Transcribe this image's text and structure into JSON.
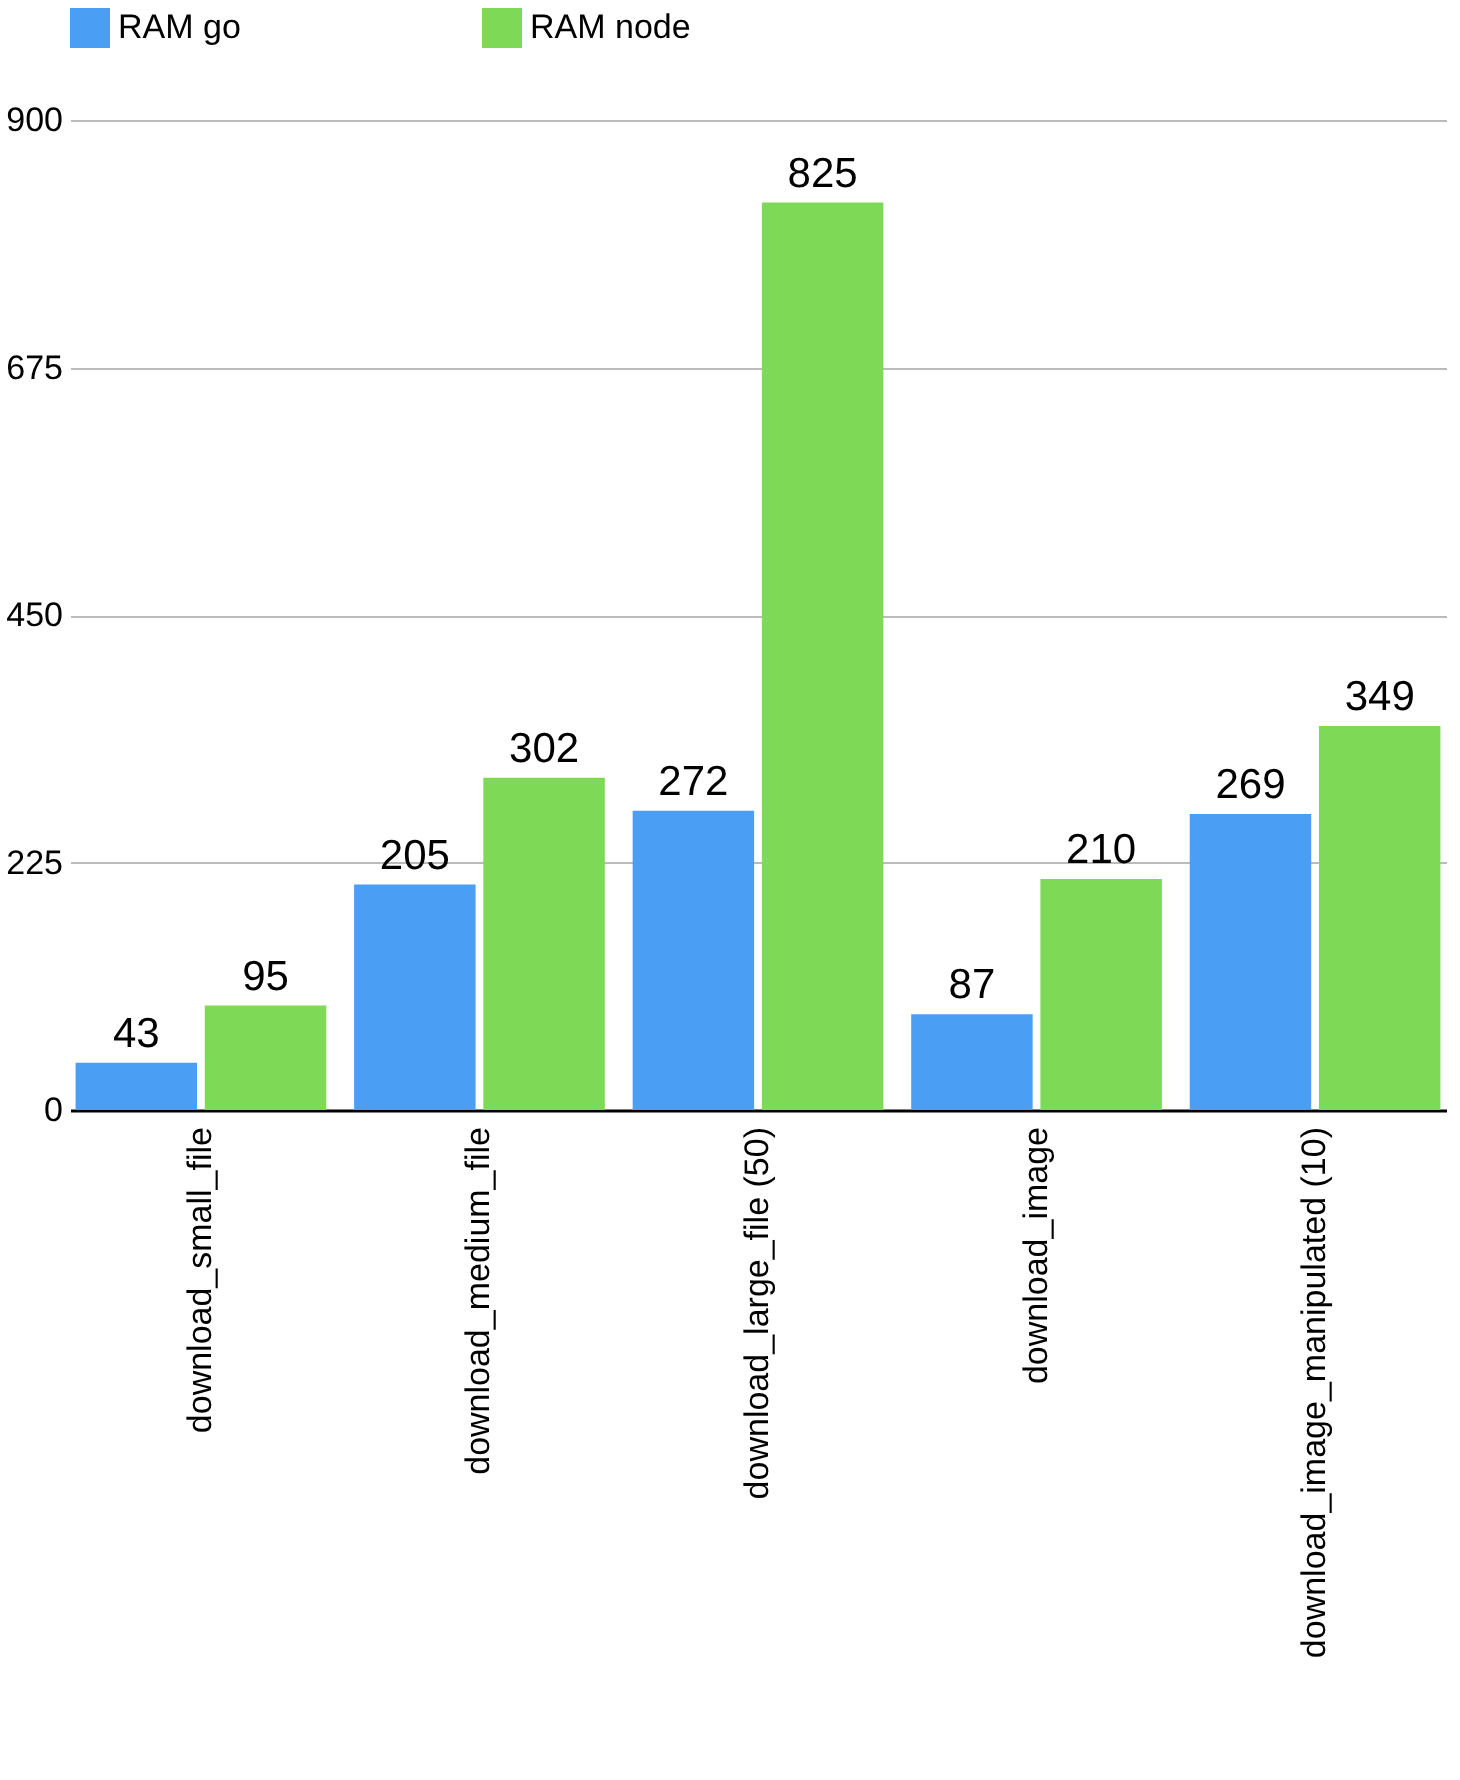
{
  "chart_data": {
    "type": "bar",
    "categories": [
      "download_small_file",
      "download_medium_file",
      "download_large_file (50)",
      "download_image",
      "download_image_manipulated (10)"
    ],
    "series": [
      {
        "name": "RAM go",
        "color": "#4a9ff5",
        "values": [
          43,
          205,
          272,
          87,
          269
        ]
      },
      {
        "name": "RAM node",
        "color": "#7ed957",
        "values": [
          95,
          302,
          825,
          210,
          349
        ]
      }
    ],
    "ylim": [
      0,
      900
    ],
    "yticks": [
      0,
      225,
      450,
      675,
      900
    ],
    "grid": "y",
    "legend": "top",
    "data_labels": true
  }
}
